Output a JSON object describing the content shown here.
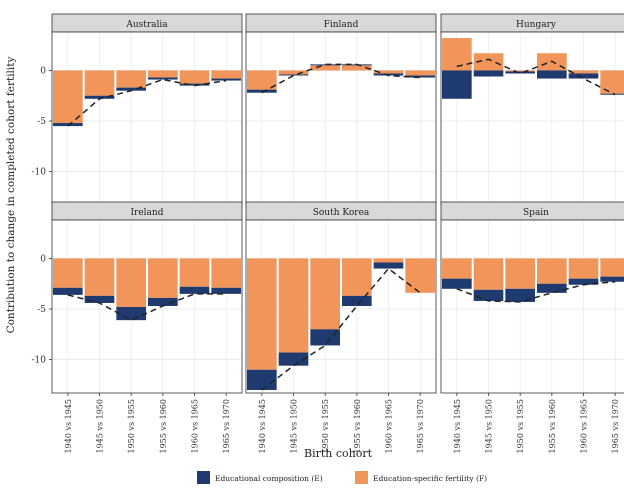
{
  "chart_data": {
    "type": "bar",
    "stacked": true,
    "ylabel": "Contribution to change in completed cohort fertility",
    "xlabel": "Birth cohort",
    "categories": [
      "1940 vs 1945",
      "1945 vs 1950",
      "1950 vs 1955",
      "1955 vs 1960",
      "1960 vs 1965",
      "1965 vs 1970"
    ],
    "yticks": [
      0,
      -5,
      -10
    ],
    "ylim": [
      -13.3,
      3.8
    ],
    "grid": true,
    "legend_position": "bottom",
    "colors": {
      "educational_composition": "#1f3a6e",
      "education_specific_fertility": "#f2955a",
      "total_line": "#222222",
      "panel_background": "#ffffff",
      "grid": "#e6e6e6",
      "strip": "#d9d9d9"
    },
    "series_names": [
      "Educational composition (E)",
      "Education-specific fertility (F)"
    ],
    "panels": [
      {
        "country": "Australia",
        "E": [
          -0.3,
          -0.3,
          -0.3,
          -0.2,
          -0.2,
          -0.2
        ],
        "F": [
          -5.2,
          -2.5,
          -1.7,
          -0.7,
          -1.3,
          -0.8
        ],
        "total": [
          -5.5,
          -2.8,
          -2.0,
          -0.9,
          -1.5,
          -1.0
        ]
      },
      {
        "country": "Finland",
        "E": [
          -0.3,
          -0.1,
          0.1,
          0.1,
          -0.2,
          -0.2
        ],
        "F": [
          -1.9,
          -0.4,
          0.5,
          0.5,
          -0.3,
          -0.5
        ],
        "total": [
          -2.2,
          -0.5,
          0.6,
          0.6,
          -0.5,
          -0.7
        ]
      },
      {
        "country": "Hungary",
        "E": [
          -2.8,
          -0.6,
          -0.2,
          -0.8,
          -0.5,
          -0.1
        ],
        "F": [
          3.2,
          1.7,
          -0.1,
          1.7,
          -0.3,
          -2.3
        ],
        "total": [
          0.4,
          1.1,
          -0.3,
          0.9,
          -0.8,
          -2.4
        ]
      },
      {
        "country": "Ireland",
        "E": [
          -0.7,
          -0.7,
          -1.3,
          -0.8,
          -0.7,
          -0.6
        ],
        "F": [
          -2.9,
          -3.7,
          -4.8,
          -3.9,
          -2.8,
          -2.9
        ],
        "total": [
          -3.6,
          -4.4,
          -6.1,
          -4.7,
          -3.5,
          -3.5
        ]
      },
      {
        "country": "South Korea",
        "E": [
          -2.0,
          -1.3,
          -1.6,
          -1.0,
          -0.6,
          0.0
        ],
        "F": [
          -11.0,
          -9.3,
          -7.0,
          -3.7,
          -0.4,
          -3.4
        ],
        "total": [
          -13.0,
          -10.6,
          -8.6,
          -4.7,
          -1.0,
          -3.4
        ]
      },
      {
        "country": "Spain",
        "E": [
          -1.0,
          -1.1,
          -1.3,
          -0.9,
          -0.6,
          -0.5
        ],
        "F": [
          -2.0,
          -3.1,
          -3.0,
          -2.5,
          -2.0,
          -1.8
        ],
        "total": [
          -3.0,
          -4.2,
          -4.3,
          -3.4,
          -2.6,
          -2.3
        ]
      }
    ]
  }
}
